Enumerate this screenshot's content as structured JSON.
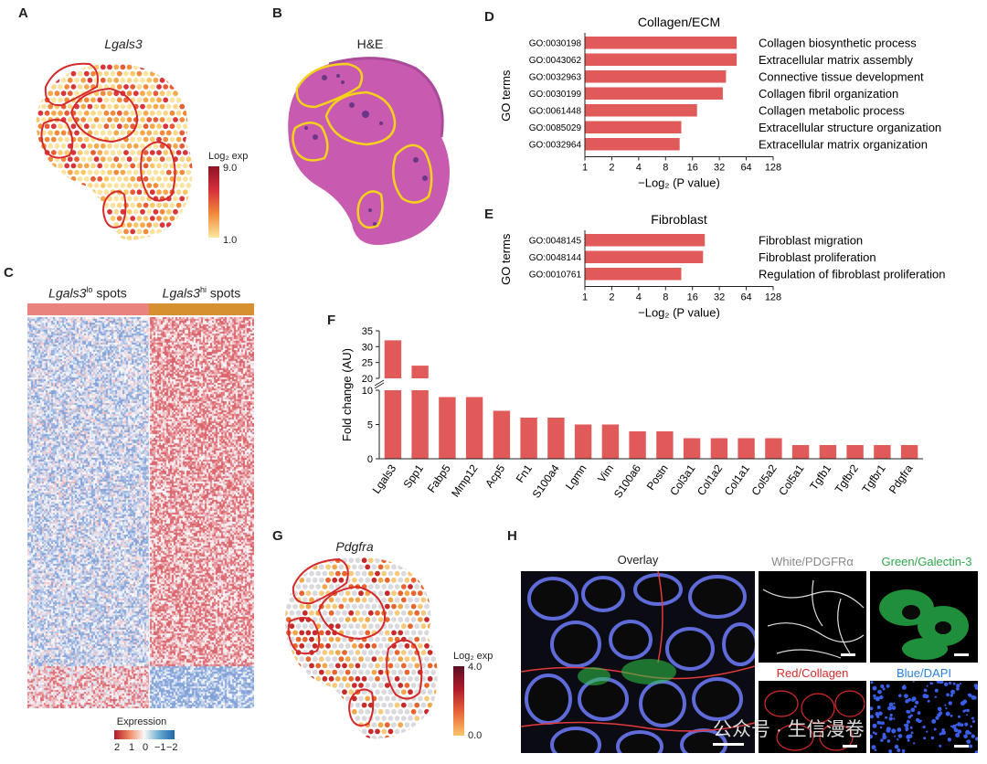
{
  "panels": {
    "a": {
      "label": "A",
      "title": "Lgals3",
      "legend_title": "Log₂ exp",
      "legend_max": "9.0",
      "legend_min": "1.0"
    },
    "b": {
      "label": "B",
      "title": "H&E"
    },
    "c": {
      "label": "C",
      "group_lo": "Lgals3",
      "group_lo_sup": "lo",
      "group_lo_suffix": " spots",
      "group_hi": "Lgals3",
      "group_hi_sup": "hi",
      "group_hi_suffix": " spots",
      "legend_title": "Expression",
      "legend_ticks": [
        "2",
        "1",
        "0",
        "−1",
        "−2"
      ]
    },
    "g": {
      "label": "G",
      "title": "Pdgfra",
      "legend_title": "Log₂ exp",
      "legend_max": "4.0",
      "legend_min": "0.0"
    },
    "h": {
      "label": "H",
      "overlay": "Overlay",
      "white": "White/PDGFRα",
      "green": "Green/Galectin-3",
      "red": "Red/Collagen",
      "blue": "Blue/DAPI",
      "watermark": "公众号 · 生信漫卷"
    }
  },
  "chart_data": [
    {
      "panel": "D",
      "type": "bar",
      "orientation": "horizontal",
      "title": "Collagen/ECM",
      "ylabel": "GO terms",
      "xlabel": "−Log₂ (P value)",
      "xticks": [
        "1",
        "2",
        "4",
        "8",
        "16",
        "32",
        "64",
        "128"
      ],
      "xscale": "log2",
      "xlim": [
        1,
        128
      ],
      "categories": [
        "GO:0030198",
        "GO:0043062",
        "GO:0032963",
        "GO:0030199",
        "GO:0061448",
        "GO:0085029",
        "GO:0032964"
      ],
      "descriptions": [
        "Collagen biosynthetic process",
        "Extracellular matrix assembly",
        "Connective tissue development",
        "Collagen fibril organization",
        "Collagen metabolic process",
        "Extracellular structure organization",
        "Extracellular matrix organization"
      ],
      "values": [
        50,
        50,
        38,
        35,
        18,
        12,
        11.5
      ],
      "color": "#e05a5a"
    },
    {
      "panel": "E",
      "type": "bar",
      "orientation": "horizontal",
      "title": "Fibroblast",
      "ylabel": "GO terms",
      "xlabel": "−Log₂ (P value)",
      "xticks": [
        "1",
        "2",
        "4",
        "8",
        "16",
        "32",
        "64",
        "128"
      ],
      "xscale": "log2",
      "xlim": [
        1,
        128
      ],
      "categories": [
        "GO:0048145",
        "GO:0048144",
        "GO:0010761"
      ],
      "descriptions": [
        "Fibroblast migration",
        "Fibroblast proliferation",
        "Regulation of fibroblast proliferation"
      ],
      "values": [
        22,
        21,
        12
      ],
      "color": "#e05a5a"
    },
    {
      "panel": "F",
      "type": "bar",
      "title": "",
      "ylabel": "Fold change (AU)",
      "xlabel": "",
      "categories": [
        "Lgals3",
        "Spp1",
        "Fabp5",
        "Mmp12",
        "Acp5",
        "Fn1",
        "S100a4",
        "Lgmn",
        "Vim",
        "S100a6",
        "Postn",
        "Col3a1",
        "Col1a2",
        "Col1a1",
        "Col5a2",
        "Col5a1",
        "Tgfb1",
        "Tgfbr2",
        "Tgfbr1",
        "Pdgfra"
      ],
      "values": [
        32,
        24,
        9,
        9,
        7,
        6,
        6,
        5,
        5,
        4,
        4,
        3,
        3,
        3,
        3,
        2,
        2,
        2,
        2,
        2
      ],
      "yticks_low": [
        "0",
        "5",
        "10"
      ],
      "yticks_high": [
        "20",
        "25",
        "30",
        "35"
      ],
      "ylim_low": [
        0,
        10
      ],
      "ylim_high": [
        20,
        35
      ],
      "axis_break": true,
      "color": "#e05a5a"
    }
  ]
}
